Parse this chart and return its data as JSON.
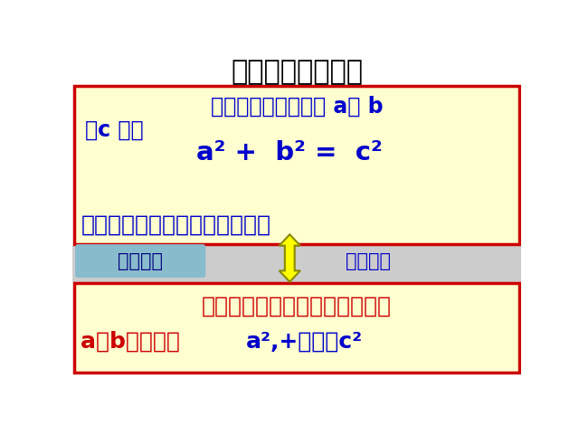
{
  "title": "勾股定理的逆命题",
  "title_color": "#000000",
  "title_fontsize": 22,
  "bg_color": "#FFFFFF",
  "top_box": {
    "line1a": "如果三角形的三边长 a、 b",
    "line2": "、c 满足",
    "formula": "a² +  b² =  c²",
    "line3": "那么这个三角形是直角三角形。",
    "bg": "#FFFFD0",
    "border": "#CC0000",
    "text_color": "#0000CC"
  },
  "bottom_box": {
    "line1": "如果直角三角形两直角边分别为",
    "line2_red": "a，b，斜边为 ",
    "line2_blue": "a²,+那么有c²",
    "bg": "#FFFFD0",
    "border": "#CC0000",
    "text_color_red": "#CC0000",
    "text_color_blue": "#0000CC"
  },
  "left_label": "勾股定理",
  "right_label": "互逆命题",
  "label_bg": "#88BBCC",
  "label_text_color": "#000080",
  "arrow_color": "#FFFF00",
  "arrow_edge": "#888800",
  "middle_bg": "#CCCCCC"
}
